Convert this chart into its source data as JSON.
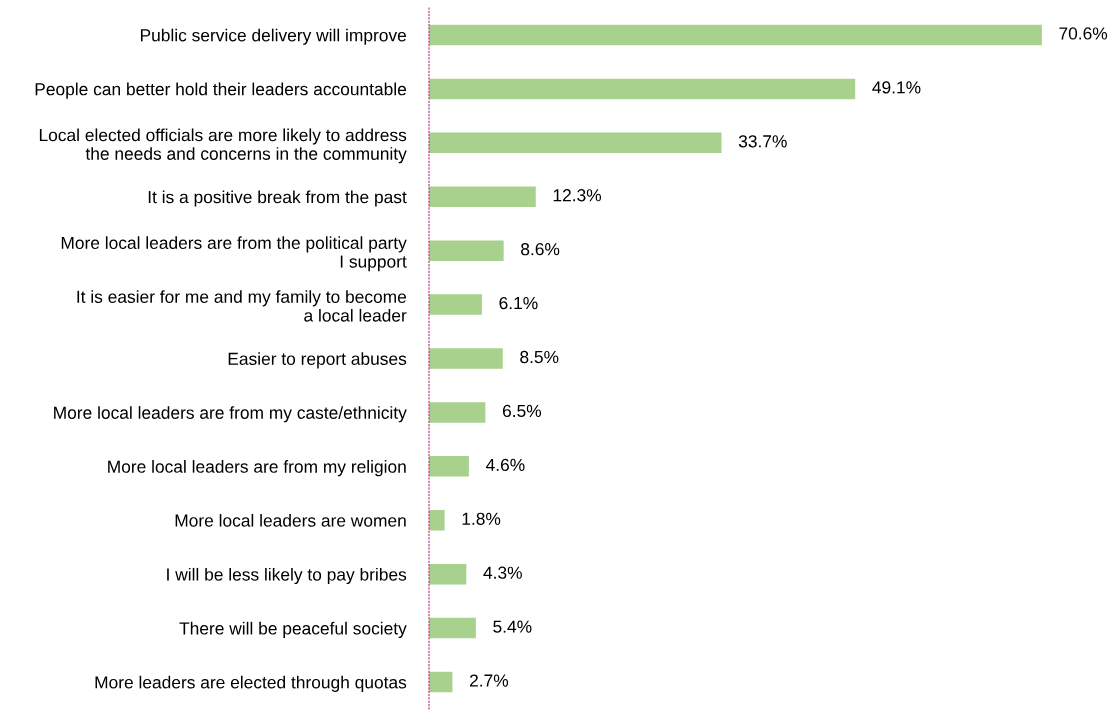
{
  "chart_data": {
    "type": "bar",
    "orientation": "horizontal",
    "categories": [
      "Public service delivery will improve",
      "People can better hold their leaders accountable",
      "Local elected officials are more likely to address\nthe needs and concerns in the community",
      "It is a positive break from the past",
      "More local leaders are from the political party\nI support",
      "It is easier for me and my family to become\na local leader",
      "Easier to report abuses",
      "More local leaders are from my caste/ethnicity",
      "More local leaders are from my religion",
      "More local leaders are women",
      "I will be less likely to pay bribes",
      "There will be peaceful society",
      "More leaders are elected through quotas"
    ],
    "values": [
      70.6,
      49.1,
      33.7,
      12.3,
      8.6,
      6.1,
      8.5,
      6.5,
      4.6,
      1.8,
      4.3,
      5.4,
      2.7
    ],
    "value_labels": [
      "70.6%",
      "49.1%",
      "33.7%",
      "12.3%",
      "8.6%",
      "6.1%",
      "8.5%",
      "6.5%",
      "4.6%",
      "1.8%",
      "4.3%",
      "5.4%",
      "2.7%"
    ],
    "color": "#a9d18e",
    "grid": false,
    "legend": false
  }
}
